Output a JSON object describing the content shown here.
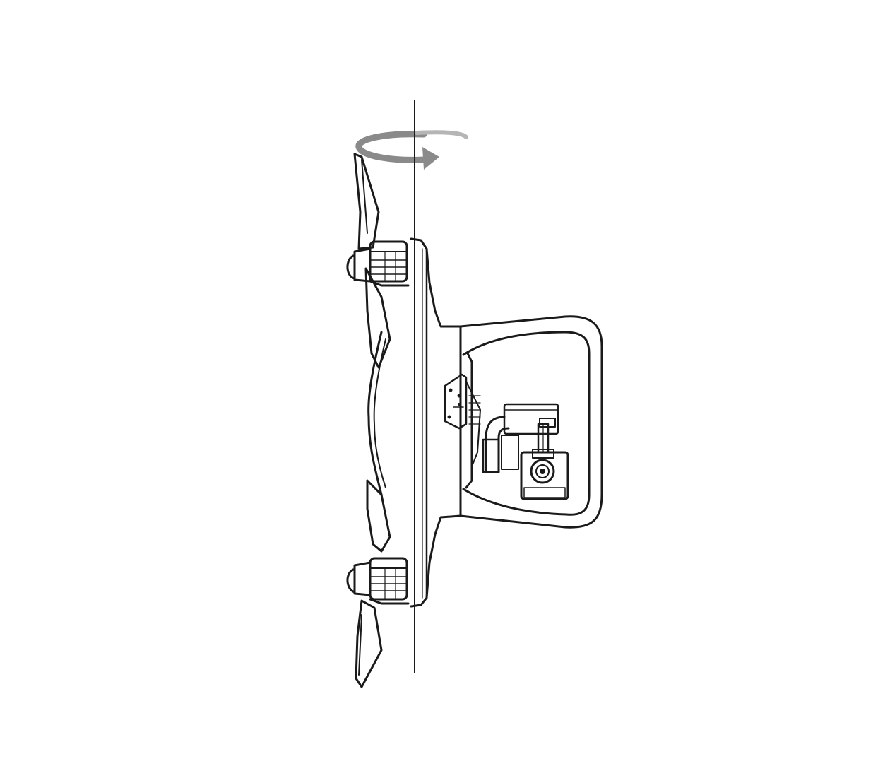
{
  "figure": {
    "kind": "line-drawing",
    "subject": "drone-side-view",
    "rotation_direction": "clockwise",
    "icons": [
      "rotation-arrow-icon",
      "axis-line",
      "propeller-icon",
      "motor-icon",
      "gimbal-camera-icon",
      "landing-gear-icon"
    ],
    "colors": {
      "ink": "#1a1a1a",
      "arrow": "#8a8a8a",
      "background": "#ffffff"
    }
  }
}
